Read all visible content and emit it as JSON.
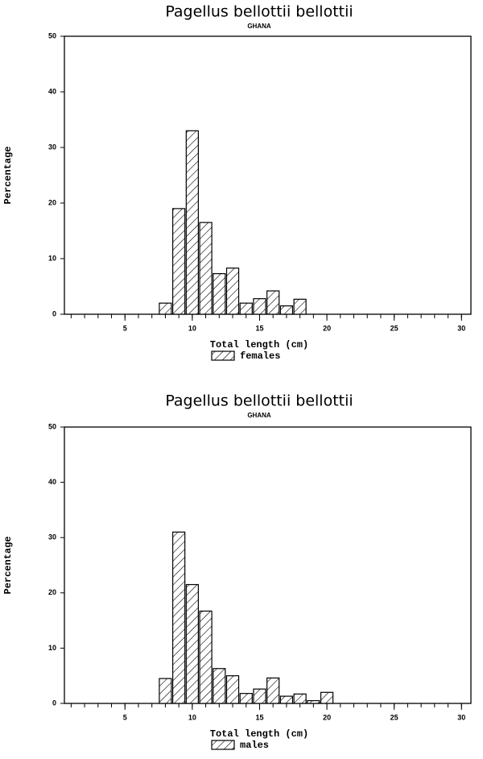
{
  "chart_data": [
    {
      "type": "bar",
      "title": "Pagellus bellottii bellottii",
      "subtitle": "GHANA",
      "x_label": "Total length (cm)",
      "y_label": "Percentage",
      "color": "#000000",
      "x": [
        8,
        9,
        10,
        11,
        12,
        13,
        14,
        15,
        16,
        17,
        18
      ],
      "series": [
        {
          "name": "females",
          "values": [
            2,
            19,
            33,
            16.5,
            7.3,
            8.3,
            2,
            2.8,
            4.2,
            1.5,
            2.7
          ]
        }
      ],
      "xlim": [
        0.5,
        30.7
      ],
      "ylim": [
        0,
        50
      ],
      "xticks": [
        5,
        10,
        15,
        20,
        25,
        30
      ],
      "yticks": [
        0,
        10,
        20,
        30,
        40,
        50
      ],
      "xminorticks": [
        1,
        2,
        3,
        4,
        5,
        6,
        7,
        8,
        9,
        10,
        11,
        12,
        13,
        14,
        15,
        16,
        17,
        18,
        19,
        20,
        21,
        22,
        23,
        24,
        25,
        26,
        27,
        28,
        29,
        30
      ]
    },
    {
      "type": "bar",
      "title": "Pagellus bellottii bellottii",
      "subtitle": "GHANA",
      "x_label": "Total length (cm)",
      "y_label": "Percentage",
      "color": "#000000",
      "x": [
        8,
        9,
        10,
        11,
        12,
        13,
        14,
        15,
        16,
        17,
        18,
        19,
        20
      ],
      "series": [
        {
          "name": "males",
          "values": [
            4.5,
            31,
            21.5,
            16.7,
            6.3,
            5,
            1.8,
            2.6,
            4.6,
            1.3,
            1.7,
            0.5,
            2
          ]
        }
      ],
      "xlim": [
        0.5,
        30.7
      ],
      "ylim": [
        0,
        50
      ],
      "xticks": [
        5,
        10,
        15,
        20,
        25,
        30
      ],
      "yticks": [
        0,
        10,
        20,
        30,
        40,
        50
      ],
      "xminorticks": [
        1,
        2,
        3,
        4,
        5,
        6,
        7,
        8,
        9,
        10,
        11,
        12,
        13,
        14,
        15,
        16,
        17,
        18,
        19,
        20,
        21,
        22,
        23,
        24,
        25,
        26,
        27,
        28,
        29,
        30
      ]
    }
  ]
}
